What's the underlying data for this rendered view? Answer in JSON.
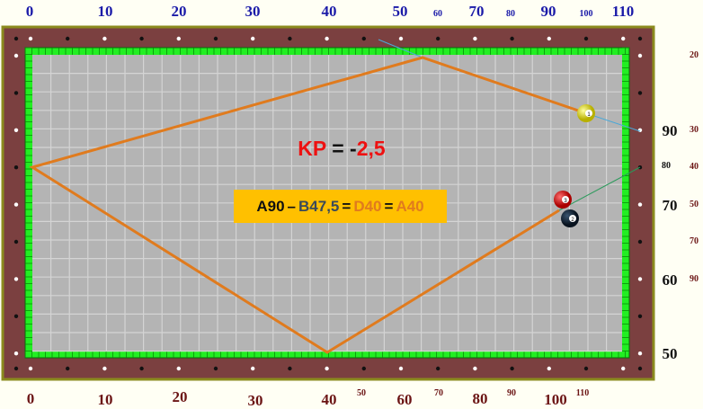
{
  "colors": {
    "rail": "#7b4040",
    "rail_border": "#8b8b1e",
    "cushion": "#22ee22",
    "cloth": "#b4b4b4",
    "path": "#e07b1e",
    "kp_red": "#ee1111",
    "formula_bg": "#ffc000",
    "a_color": "#111111",
    "b_color": "#3a4a5a",
    "d_color": "#e07b1e"
  },
  "top_scale": {
    "large": [
      "0",
      "10",
      "20",
      "30",
      "40",
      "50",
      "70",
      "90",
      "110"
    ],
    "small": [
      "60",
      "80",
      "100"
    ]
  },
  "right_scale_black": {
    "large": [
      "90",
      "70",
      "60",
      "50"
    ],
    "small": [
      "80"
    ]
  },
  "right_scale_red": [
    "20",
    "30",
    "40",
    "50",
    "70",
    "90"
  ],
  "bottom_scale": {
    "large": [
      "0",
      "10",
      "20",
      "30",
      "40",
      "60",
      "80",
      "100"
    ],
    "small": [
      "50",
      "70",
      "90",
      "110"
    ]
  },
  "kp": {
    "label": "KP",
    "eq": " = ",
    "minus": "-",
    "value": "2,5"
  },
  "formula": {
    "a": "A90",
    "dash": "–",
    "b": "B47,5",
    "eq1": "=",
    "d": "D40",
    "eq2": "=",
    "a2": "A40"
  },
  "balls": [
    {
      "number": "1",
      "color": "#e8e020"
    },
    {
      "number": "3",
      "color": "#dd1111"
    },
    {
      "number": "2",
      "color": "#13253a"
    }
  ]
}
